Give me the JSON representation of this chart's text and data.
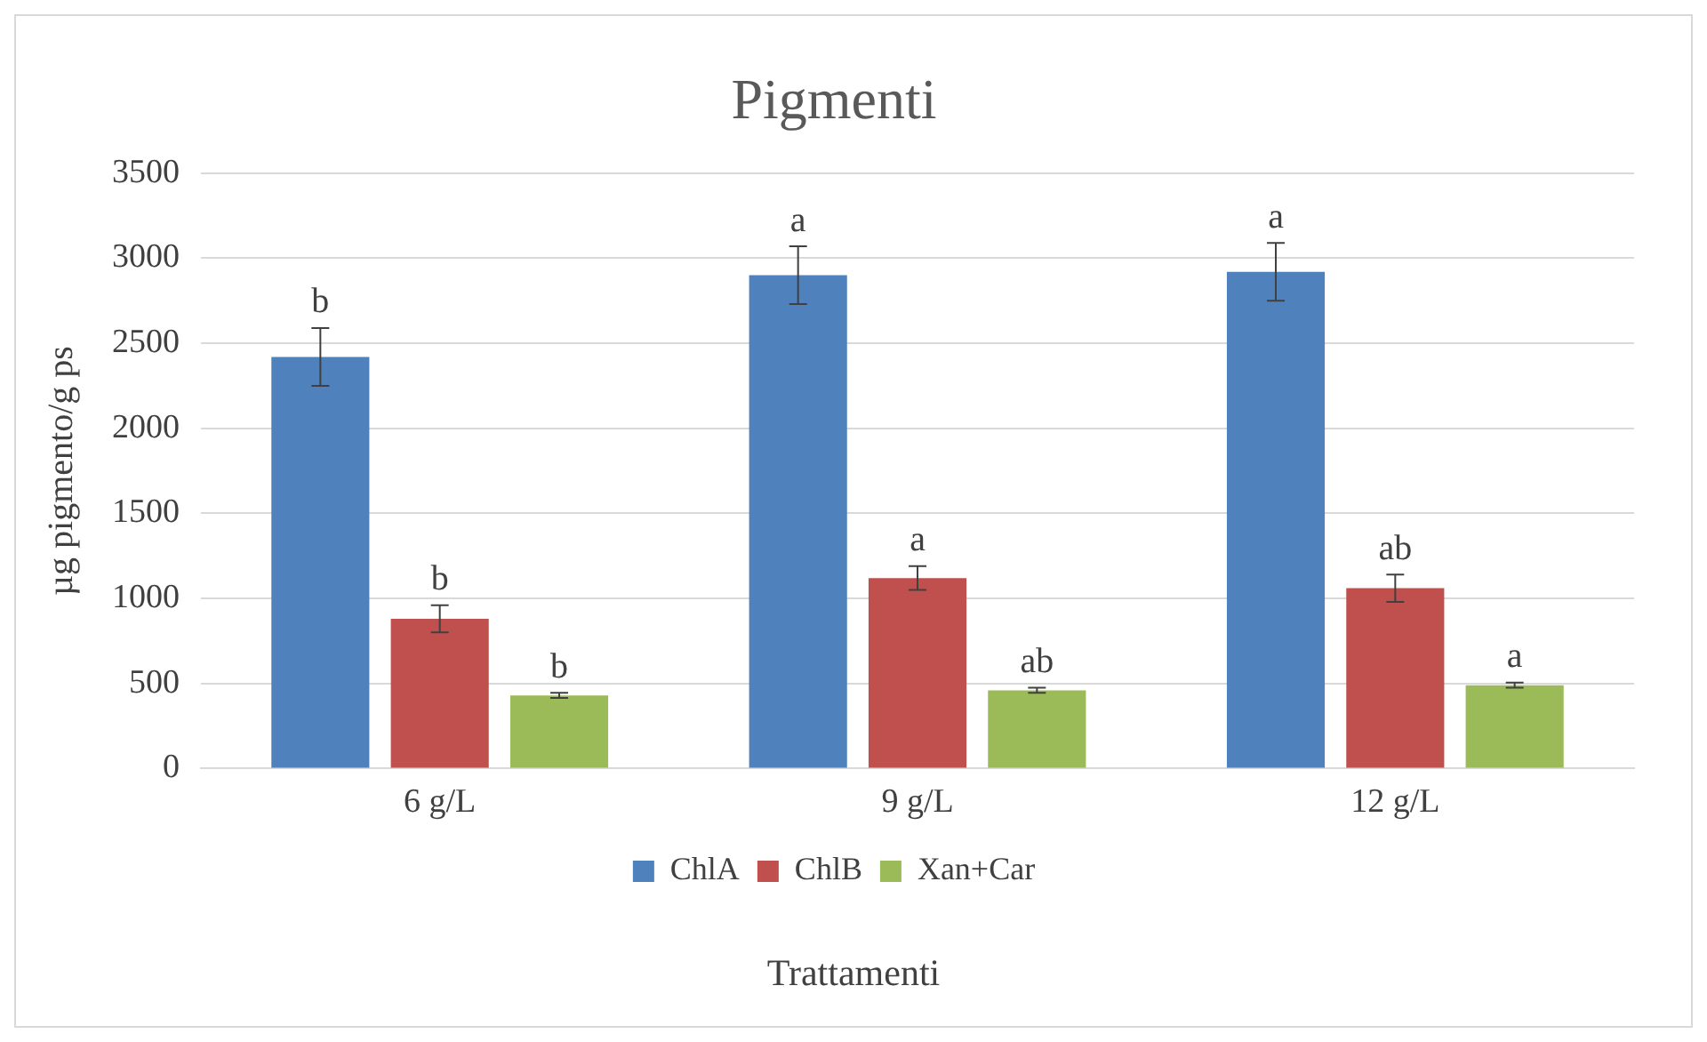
{
  "chart_data": {
    "type": "bar",
    "title": "Pigmenti",
    "xlabel": "Trattamenti",
    "ylabel": "µg pigmento/g ps",
    "categories": [
      "6 g/L",
      "9 g/L",
      "12 g/L"
    ],
    "series": [
      {
        "name": "ChlA",
        "color": "#4f81bd",
        "values": [
          2420,
          2900,
          2920
        ],
        "errors": [
          170,
          170,
          170
        ]
      },
      {
        "name": "ChlB",
        "color": "#c0504d",
        "values": [
          880,
          1120,
          1060
        ],
        "errors": [
          80,
          70,
          80
        ]
      },
      {
        "name": "Xan+Car",
        "color": "#9bbb59",
        "values": [
          430,
          460,
          490
        ],
        "errors": [
          15,
          15,
          15
        ]
      }
    ],
    "ylim": [
      0,
      3500
    ],
    "yticks": [
      0,
      500,
      1000,
      1500,
      2000,
      2500,
      3000,
      3500
    ],
    "grid": "y",
    "legend": "bottom",
    "annotations": [
      "b",
      "b",
      "b",
      "a",
      "a",
      "ab",
      "a",
      "ab",
      "a"
    ]
  }
}
